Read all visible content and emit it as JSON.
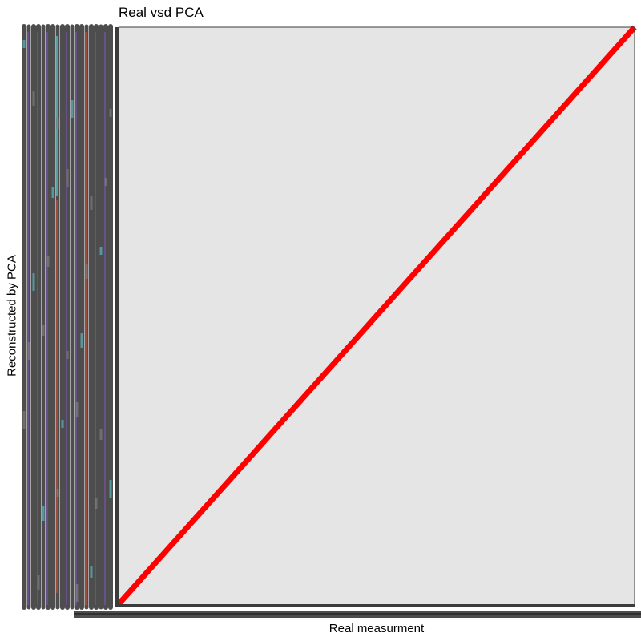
{
  "chart_data": {
    "type": "line",
    "title": "Real vsd PCA",
    "xlabel": "Real measurment",
    "ylabel": "Reconstructed by PCA",
    "xlim": [
      0,
      1
    ],
    "ylim": [
      0,
      1
    ],
    "grid": false,
    "legend": "none",
    "series": [
      {
        "x": [
          0,
          1
        ],
        "y": [
          0,
          1
        ]
      }
    ],
    "tick_label_note": "y-axis and x-axis tick labels are overplotted and illegible",
    "colors": {
      "panel_background": "#e5e5e5",
      "line": "#ff0000",
      "axis_frame": "#3c3c3c",
      "overplotted_labels": "#4d4d4d",
      "overplotted_accents": [
        "#7a52b0",
        "#5fd6e0",
        "#d24a3a"
      ]
    }
  }
}
